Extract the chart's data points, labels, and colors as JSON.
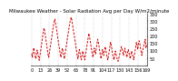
{
  "title": "Milwaukee Weather - Solar Radiation Avg per Day W/m2/minute",
  "bg_color": "#ffffff",
  "line_color": "#cc0000",
  "grid_color": "#999999",
  "ylim": [
    0,
    350
  ],
  "yticks": [
    50,
    100,
    150,
    200,
    250,
    300,
    350
  ],
  "y_values": [
    80,
    55,
    95,
    120,
    95,
    65,
    45,
    75,
    105,
    85,
    55,
    35,
    65,
    95,
    130,
    160,
    195,
    225,
    255,
    235,
    205,
    170,
    140,
    108,
    75,
    55,
    85,
    118,
    148,
    178,
    210,
    245,
    275,
    295,
    315,
    290,
    262,
    228,
    198,
    168,
    138,
    108,
    75,
    55,
    88,
    118,
    98,
    68,
    45,
    78,
    108,
    138,
    168,
    198,
    228,
    258,
    290,
    308,
    328,
    308,
    278,
    248,
    218,
    188,
    158,
    128,
    98,
    68,
    45,
    78,
    108,
    88,
    58,
    38,
    68,
    98,
    78,
    55,
    38,
    68,
    98,
    128,
    158,
    188,
    218,
    198,
    168,
    138,
    108,
    78,
    55,
    88,
    118,
    98,
    78,
    118,
    148,
    178,
    158,
    128,
    98,
    68,
    45,
    78,
    108,
    88,
    68,
    98,
    128,
    108,
    78,
    55,
    38,
    68,
    98,
    128,
    158,
    138,
    108,
    78,
    55,
    38,
    68,
    98,
    78,
    55,
    38,
    28,
    48,
    68,
    88,
    108,
    128,
    108,
    88,
    68,
    98,
    118,
    98,
    78,
    55,
    88,
    108,
    88,
    68,
    45,
    78,
    98,
    78,
    55,
    38,
    68,
    98,
    128,
    158,
    138,
    108,
    148,
    168,
    148,
    118,
    88,
    68,
    98,
    118,
    138,
    158,
    178,
    118,
    138
  ],
  "tick_fontsize": 3.5,
  "title_fontsize": 4.0,
  "line_width": 0.7,
  "grid_interval": 13
}
